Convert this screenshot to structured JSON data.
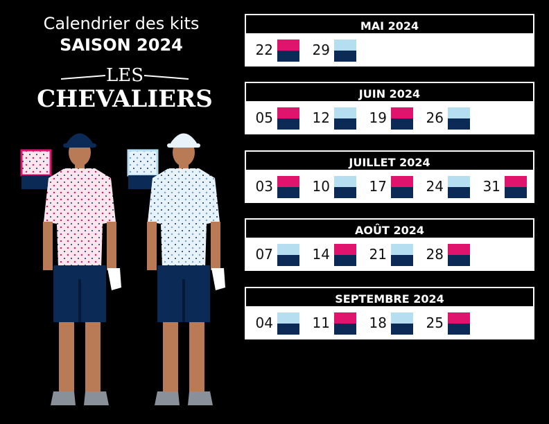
{
  "header": {
    "title": "Calendrier des kits",
    "subtitle": "SAISON 2024",
    "logo_small": "LES",
    "logo_big": "CHEVALIERS"
  },
  "colors": {
    "pink": "#e0136d",
    "light_blue": "#b6def1",
    "navy": "#0b2a55"
  },
  "months": [
    {
      "name": "MAI 2024",
      "days": [
        {
          "num": "22",
          "kit": "pink"
        },
        {
          "num": "29",
          "kit": "light_blue"
        }
      ]
    },
    {
      "name": "JUIN 2024",
      "days": [
        {
          "num": "05",
          "kit": "pink"
        },
        {
          "num": "12",
          "kit": "light_blue"
        },
        {
          "num": "19",
          "kit": "pink"
        },
        {
          "num": "26",
          "kit": "light_blue"
        }
      ]
    },
    {
      "name": "JUILLET 2024",
      "days": [
        {
          "num": "03",
          "kit": "pink"
        },
        {
          "num": "10",
          "kit": "light_blue"
        },
        {
          "num": "17",
          "kit": "pink"
        },
        {
          "num": "24",
          "kit": "light_blue"
        },
        {
          "num": "31",
          "kit": "pink"
        }
      ]
    },
    {
      "name": "AOÛT 2024",
      "days": [
        {
          "num": "07",
          "kit": "light_blue"
        },
        {
          "num": "14",
          "kit": "pink"
        },
        {
          "num": "21",
          "kit": "light_blue"
        },
        {
          "num": "28",
          "kit": "pink"
        }
      ]
    },
    {
      "name": "SEPTEMBRE 2024",
      "days": [
        {
          "num": "04",
          "kit": "light_blue"
        },
        {
          "num": "11",
          "kit": "pink"
        },
        {
          "num": "18",
          "kit": "light_blue"
        },
        {
          "num": "25",
          "kit": "pink"
        }
      ]
    }
  ]
}
